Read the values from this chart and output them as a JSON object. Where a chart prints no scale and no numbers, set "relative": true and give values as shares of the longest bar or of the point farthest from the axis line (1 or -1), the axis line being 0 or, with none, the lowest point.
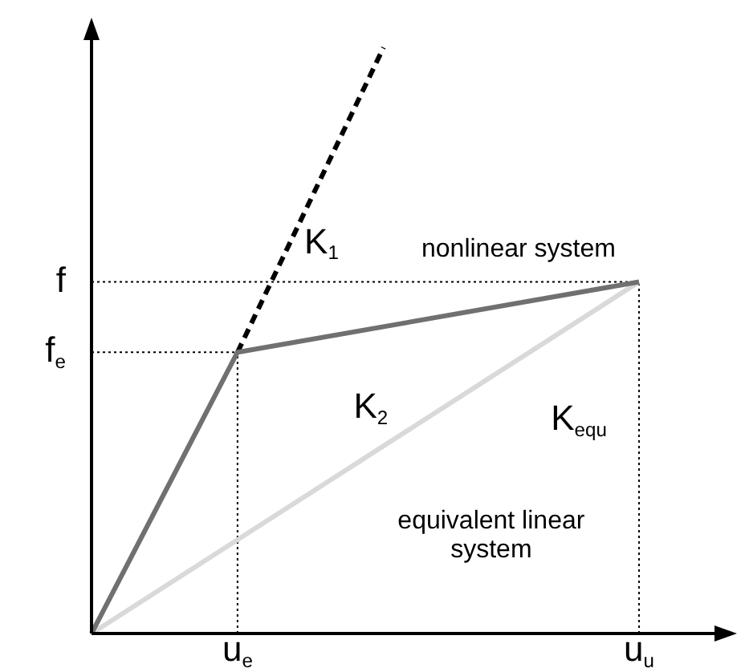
{
  "chart_data": {
    "type": "line",
    "relative": true,
    "marker": "none",
    "categories": [
      null,
      null,
      null,
      null,
      "u$_{e}$",
      null,
      null,
      null,
      null,
      null,
      null,
      null,
      null,
      null,
      null,
      "u$_{u}$"
    ],
    "series": [
      {
        "color": "#707070",
        "values": [
          0,
          null,
          null,
          null,
          0.48,
          null,
          null,
          null,
          null,
          null,
          null,
          null,
          null,
          null,
          null,
          0.6
        ]
      },
      {
        "color": "#000000",
        "line_style": "dashed",
        "values": [
          null,
          null,
          null,
          null,
          0.48,
          null,
          null,
          null,
          1,
          null,
          null,
          null,
          null,
          null,
          null,
          null
        ]
      },
      {
        "color": "#d9d9d9",
        "values": [
          0,
          null,
          null,
          null,
          null,
          null,
          null,
          null,
          null,
          null,
          null,
          null,
          null,
          null,
          null,
          0.6
        ]
      }
    ],
    "ref_lines": [
      {
        "axis": "y",
        "value": 0.6,
        "label": "f",
        "line_style": "dotted"
      },
      {
        "axis": "y",
        "value": 0.48,
        "label": "f$_{e}$",
        "line_style": "dotted"
      },
      {
        "axis": "x",
        "value": "u$_{e}$",
        "line_style": "dotted"
      },
      {
        "axis": "x",
        "value": "u$_{u}$",
        "line_style": "dotted"
      }
    ],
    "annotations": [
      "K$_{1}$",
      "K$_{2}$",
      "K$_{equ}$",
      "nonlinear system",
      "equivalent linear system"
    ]
  }
}
